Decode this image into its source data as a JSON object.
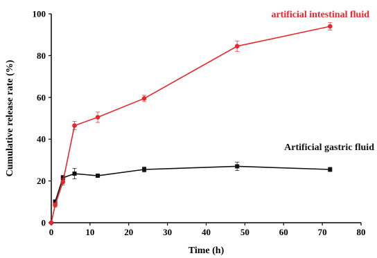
{
  "chart_data": {
    "type": "line",
    "xlabel": "Time (h)",
    "ylabel": "Cumulative release rate (%)",
    "xlim": [
      0,
      80
    ],
    "ylim": [
      0,
      100
    ],
    "xticks": [
      0,
      10,
      20,
      30,
      40,
      50,
      60,
      70,
      80
    ],
    "yticks": [
      0,
      20,
      40,
      60,
      80,
      100
    ],
    "grid": false,
    "series": [
      {
        "name": "artificial intestinal fluid",
        "color": "#e8262b",
        "marker": "circle",
        "x": [
          0,
          1,
          3,
          6,
          12,
          24,
          48,
          72
        ],
        "y": [
          0,
          8.5,
          19.5,
          46.5,
          50.5,
          59.5,
          84.5,
          94
        ],
        "err": [
          0.5,
          1.0,
          1.5,
          2.0,
          2.5,
          1.5,
          2.5,
          1.8
        ]
      },
      {
        "name": "Artificial gastric fluid",
        "color": "#111111",
        "marker": "square",
        "x": [
          1,
          3,
          6,
          12,
          24,
          48,
          72
        ],
        "y": [
          10.0,
          21.5,
          23.5,
          22.5,
          25.5,
          27.0,
          25.5
        ],
        "err": [
          1.0,
          1.2,
          2.5,
          0.8,
          1.2,
          2.0,
          1.0
        ]
      }
    ]
  }
}
